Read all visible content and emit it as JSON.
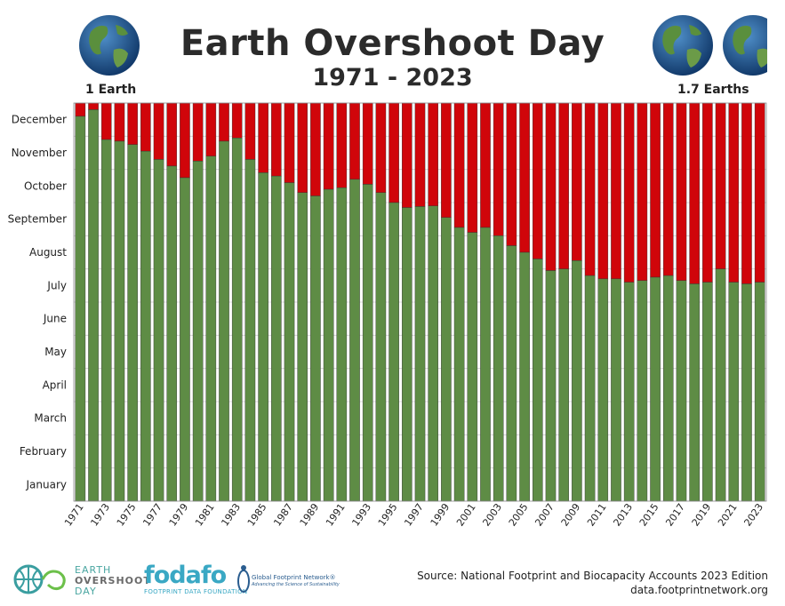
{
  "header": {
    "title": "Earth Overshoot Day",
    "subtitle": "1971 - 2023",
    "left_label": "1 Earth",
    "right_label": "1.7 Earths",
    "globe_icon": "earth-globe-icon"
  },
  "chart_data": {
    "type": "bar",
    "stacked": true,
    "categories": [
      "1971",
      "1972",
      "1973",
      "1974",
      "1975",
      "1976",
      "1977",
      "1978",
      "1979",
      "1980",
      "1981",
      "1982",
      "1983",
      "1984",
      "1985",
      "1986",
      "1987",
      "1988",
      "1989",
      "1990",
      "1991",
      "1992",
      "1993",
      "1994",
      "1995",
      "1996",
      "1997",
      "1998",
      "1999",
      "2000",
      "2001",
      "2002",
      "2003",
      "2004",
      "2005",
      "2006",
      "2007",
      "2008",
      "2009",
      "2010",
      "2011",
      "2012",
      "2013",
      "2014",
      "2015",
      "2016",
      "2017",
      "2018",
      "2019",
      "2020",
      "2021",
      "2022",
      "2023"
    ],
    "x_tick_labels": [
      "1971",
      "1973",
      "1975",
      "1977",
      "1979",
      "1981",
      "1983",
      "1985",
      "1987",
      "1989",
      "1991",
      "1993",
      "1995",
      "1997",
      "1999",
      "2001",
      "2003",
      "2005",
      "2007",
      "2009",
      "2011",
      "2013",
      "2015",
      "2017",
      "2019",
      "2021",
      "2023"
    ],
    "y_tick_labels": [
      "January",
      "February",
      "March",
      "April",
      "May",
      "June",
      "July",
      "August",
      "September",
      "October",
      "November",
      "December"
    ],
    "ylim": [
      0,
      12
    ],
    "series": [
      {
        "color": "#5e8c45",
        "values": [
          11.6,
          11.8,
          10.9,
          10.85,
          10.75,
          10.55,
          10.3,
          10.1,
          9.75,
          10.25,
          10.4,
          10.85,
          10.95,
          10.3,
          9.9,
          9.8,
          9.6,
          9.3,
          9.2,
          9.4,
          9.45,
          9.7,
          9.55,
          9.3,
          9.0,
          8.85,
          8.88,
          8.9,
          8.55,
          8.25,
          8.1,
          8.25,
          8.0,
          7.7,
          7.5,
          7.3,
          6.95,
          7.0,
          7.25,
          6.8,
          6.7,
          6.7,
          6.6,
          6.65,
          6.75,
          6.8,
          6.65,
          6.55,
          6.6,
          7.0,
          6.6,
          6.55,
          6.6
        ]
      },
      {
        "color": "#d0050a",
        "fill_to": 12
      }
    ],
    "grid": "horizontal",
    "title": "",
    "xlabel": "",
    "ylabel": ""
  },
  "footer": {
    "eod_line1": "EARTH",
    "eod_line2": "OVERSHOOT",
    "eod_line3": "DAY",
    "fodafo": "fodafo",
    "fodafo_sub": "FOOTPRINT DATA FOUNDATION",
    "gfn": "Global Footprint Network®",
    "gfn_sub": "Advancing the Science of Sustainability",
    "source": "Source: National Footprint and Biocapacity Accounts 2023 Edition",
    "url": "data.footprintnetwork.org"
  }
}
